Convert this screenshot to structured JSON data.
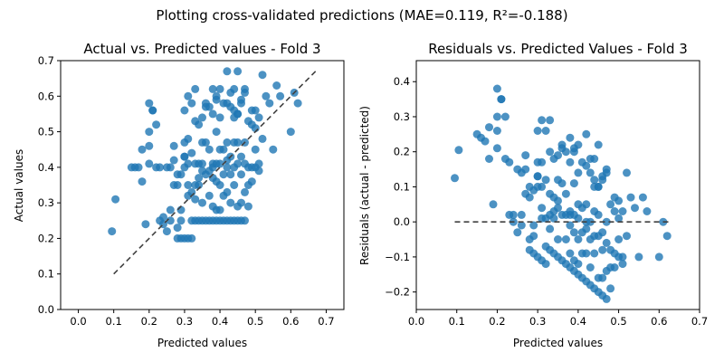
{
  "figure": {
    "suptitle": "Plotting cross-validated predictions (MAE=0.119, R²=-0.188)"
  },
  "chart_data": [
    {
      "type": "scatter",
      "title": "Actual vs. Predicted values - Fold 3",
      "xlabel": "Predicted values",
      "ylabel": "Actual values",
      "xlim": [
        -0.05,
        0.75
      ],
      "ylim": [
        0.0,
        0.7
      ],
      "xticks": [
        0.0,
        0.1,
        0.2,
        0.3,
        0.4,
        0.5,
        0.6,
        0.7
      ],
      "yticks": [
        0.0,
        0.1,
        0.2,
        0.3,
        0.4,
        0.5,
        0.6,
        0.7
      ],
      "reference_line": {
        "x": [
          0.1,
          0.67
        ],
        "y": [
          0.1,
          0.67
        ],
        "style": "dashed",
        "color": "#404040"
      },
      "color": "#1f77b4",
      "x": [
        0.095,
        0.105,
        0.15,
        0.16,
        0.17,
        0.18,
        0.18,
        0.19,
        0.2,
        0.2,
        0.2,
        0.2,
        0.21,
        0.21,
        0.22,
        0.22,
        0.23,
        0.23,
        0.24,
        0.24,
        0.25,
        0.25,
        0.26,
        0.26,
        0.26,
        0.27,
        0.27,
        0.27,
        0.28,
        0.28,
        0.28,
        0.28,
        0.29,
        0.29,
        0.29,
        0.29,
        0.3,
        0.3,
        0.3,
        0.3,
        0.3,
        0.31,
        0.31,
        0.31,
        0.31,
        0.31,
        0.32,
        0.32,
        0.32,
        0.32,
        0.32,
        0.33,
        0.33,
        0.33,
        0.33,
        0.33,
        0.33,
        0.34,
        0.34,
        0.34,
        0.34,
        0.34,
        0.35,
        0.35,
        0.35,
        0.35,
        0.35,
        0.36,
        0.36,
        0.36,
        0.36,
        0.37,
        0.37,
        0.37,
        0.37,
        0.37,
        0.38,
        0.38,
        0.38,
        0.38,
        0.38,
        0.38,
        0.39,
        0.39,
        0.39,
        0.39,
        0.39,
        0.39,
        0.4,
        0.4,
        0.4,
        0.4,
        0.4,
        0.4,
        0.4,
        0.41,
        0.41,
        0.41,
        0.41,
        0.41,
        0.42,
        0.42,
        0.42,
        0.42,
        0.42,
        0.42,
        0.43,
        0.43,
        0.43,
        0.43,
        0.43,
        0.44,
        0.44,
        0.44,
        0.44,
        0.44,
        0.44,
        0.45,
        0.45,
        0.45,
        0.45,
        0.45,
        0.45,
        0.46,
        0.46,
        0.46,
        0.46,
        0.46,
        0.47,
        0.47,
        0.47,
        0.47,
        0.47,
        0.48,
        0.48,
        0.48,
        0.48,
        0.49,
        0.49,
        0.49,
        0.49,
        0.5,
        0.5,
        0.5,
        0.5,
        0.51,
        0.51,
        0.51,
        0.52,
        0.52,
        0.53,
        0.54,
        0.55,
        0.56,
        0.57,
        0.6,
        0.61,
        0.62,
        0.36,
        0.38,
        0.42,
        0.44,
        0.45,
        0.46,
        0.47,
        0.3,
        0.31,
        0.35,
        0.39,
        0.43
      ],
      "y": [
        0.22,
        0.31,
        0.4,
        0.4,
        0.4,
        0.36,
        0.45,
        0.24,
        0.41,
        0.46,
        0.5,
        0.58,
        0.56,
        0.56,
        0.4,
        0.52,
        0.25,
        0.4,
        0.24,
        0.26,
        0.4,
        0.22,
        0.25,
        0.28,
        0.4,
        0.35,
        0.42,
        0.46,
        0.2,
        0.23,
        0.35,
        0.38,
        0.2,
        0.25,
        0.28,
        0.38,
        0.2,
        0.4,
        0.43,
        0.47,
        0.56,
        0.2,
        0.32,
        0.35,
        0.41,
        0.6,
        0.2,
        0.25,
        0.33,
        0.44,
        0.58,
        0.25,
        0.31,
        0.35,
        0.41,
        0.53,
        0.62,
        0.25,
        0.35,
        0.37,
        0.41,
        0.52,
        0.25,
        0.3,
        0.39,
        0.41,
        0.47,
        0.25,
        0.38,
        0.47,
        0.57,
        0.25,
        0.32,
        0.39,
        0.45,
        0.57,
        0.25,
        0.29,
        0.37,
        0.41,
        0.55,
        0.62,
        0.25,
        0.28,
        0.36,
        0.41,
        0.5,
        0.59,
        0.25,
        0.28,
        0.35,
        0.41,
        0.45,
        0.54,
        0.62,
        0.25,
        0.32,
        0.38,
        0.45,
        0.58,
        0.25,
        0.33,
        0.4,
        0.47,
        0.58,
        0.67,
        0.25,
        0.3,
        0.38,
        0.43,
        0.61,
        0.25,
        0.35,
        0.4,
        0.47,
        0.56,
        0.62,
        0.25,
        0.29,
        0.41,
        0.47,
        0.55,
        0.67,
        0.25,
        0.3,
        0.38,
        0.43,
        0.58,
        0.25,
        0.33,
        0.41,
        0.47,
        0.61,
        0.29,
        0.35,
        0.4,
        0.53,
        0.36,
        0.4,
        0.52,
        0.56,
        0.4,
        0.45,
        0.51,
        0.56,
        0.39,
        0.41,
        0.54,
        0.48,
        0.66,
        0.6,
        0.58,
        0.45,
        0.63,
        0.6,
        0.5,
        0.61,
        0.58,
        0.58,
        0.4,
        0.42,
        0.54,
        0.55,
        0.59,
        0.62,
        0.43,
        0.48,
        0.54,
        0.6,
        0.57
      ]
    },
    {
      "type": "scatter",
      "title": "Residuals vs. Predicted Values - Fold 3",
      "xlabel": "Predicted values",
      "ylabel": "Residuals (actual - predicted)",
      "xlim": [
        0.0,
        0.7
      ],
      "ylim": [
        -0.25,
        0.46
      ],
      "xticks": [
        0.0,
        0.1,
        0.2,
        0.3,
        0.4,
        0.5,
        0.6,
        0.7
      ],
      "yticks": [
        -0.2,
        -0.1,
        0.0,
        0.1,
        0.2,
        0.3,
        0.4
      ],
      "reference_line": {
        "x": [
          0.095,
          0.63
        ],
        "y": [
          0.0,
          0.0
        ],
        "style": "dashed",
        "color": "#404040"
      },
      "color": "#1f77b4"
    }
  ]
}
